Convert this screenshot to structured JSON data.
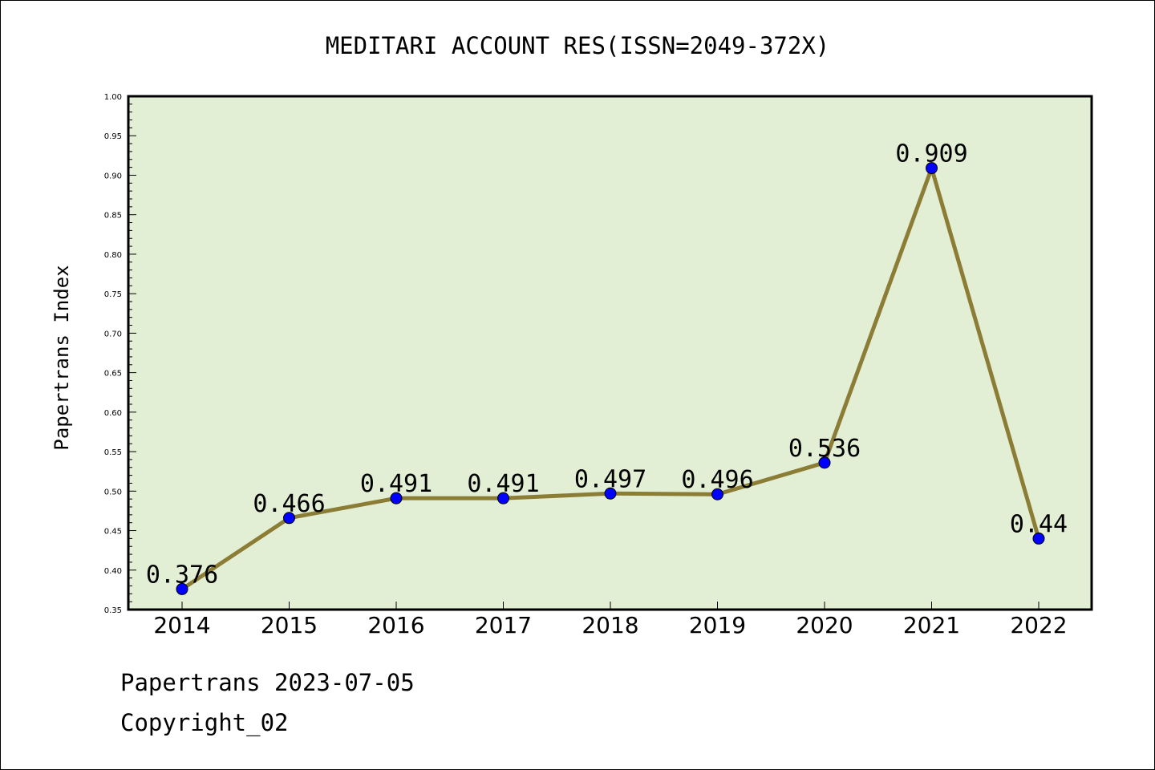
{
  "chart_data": {
    "type": "line",
    "title": "MEDITARI ACCOUNT RES(ISSN=2049-372X)",
    "xlabel": "",
    "ylabel": "Papertrans Index",
    "categories": [
      "2014",
      "2015",
      "2016",
      "2017",
      "2018",
      "2019",
      "2020",
      "2021",
      "2022"
    ],
    "series": [
      {
        "values": [
          0.376,
          0.466,
          0.491,
          0.491,
          0.497,
          0.496,
          0.536,
          0.909,
          0.44
        ],
        "labels": [
          "0.376",
          "0.466",
          "0.491",
          "0.491",
          "0.497",
          "0.496",
          "0.536",
          "0.909",
          "0.44"
        ]
      }
    ],
    "ylim": [
      0.35,
      1.0
    ],
    "yticks": [
      "0.35",
      "0.40",
      "0.45",
      "0.50",
      "0.55",
      "0.60",
      "0.65",
      "0.70",
      "0.75",
      "0.80",
      "0.85",
      "0.90",
      "0.95",
      "1.00"
    ],
    "grid": false,
    "legend": "none",
    "colors": {
      "plot_background": "#e2efd5",
      "line": "#8c7d36",
      "marker": "#0000ff"
    }
  },
  "footer": {
    "date_line": "Papertrans 2023-07-05",
    "copyright_line": "Copyright_02"
  }
}
